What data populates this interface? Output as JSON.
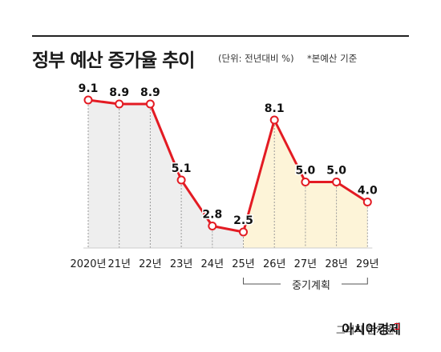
{
  "header": {
    "title": "정부 예산 증가율 추이",
    "unit": "(단위: 전년대비 %)",
    "note": "*본예산 기준"
  },
  "chart_data": {
    "type": "line",
    "categories": [
      "2020년",
      "21년",
      "22년",
      "23년",
      "24년",
      "25년",
      "26년",
      "27년",
      "28년",
      "29년"
    ],
    "values": [
      9.1,
      8.9,
      8.9,
      5.1,
      2.8,
      2.5,
      8.1,
      5.0,
      5.0,
      4.0
    ],
    "value_labels": [
      "9.1",
      "8.9",
      "8.9",
      "5.1",
      "2.8",
      "2.5",
      "8.1",
      "5.0",
      "5.0",
      "4.0"
    ],
    "ylim": [
      2.5,
      9.1
    ],
    "grid": "vertical-dashed",
    "plan_range_label": "중기계획",
    "plan_start_index": 5,
    "colors": {
      "line": "#e31b23",
      "actual_fill": "#eeeeee",
      "plan_fill": "#fdf4d8",
      "grid": "#9a9a9a"
    }
  },
  "footer": {
    "credit": "그래픽 문지원",
    "brand": "아시아경제"
  }
}
